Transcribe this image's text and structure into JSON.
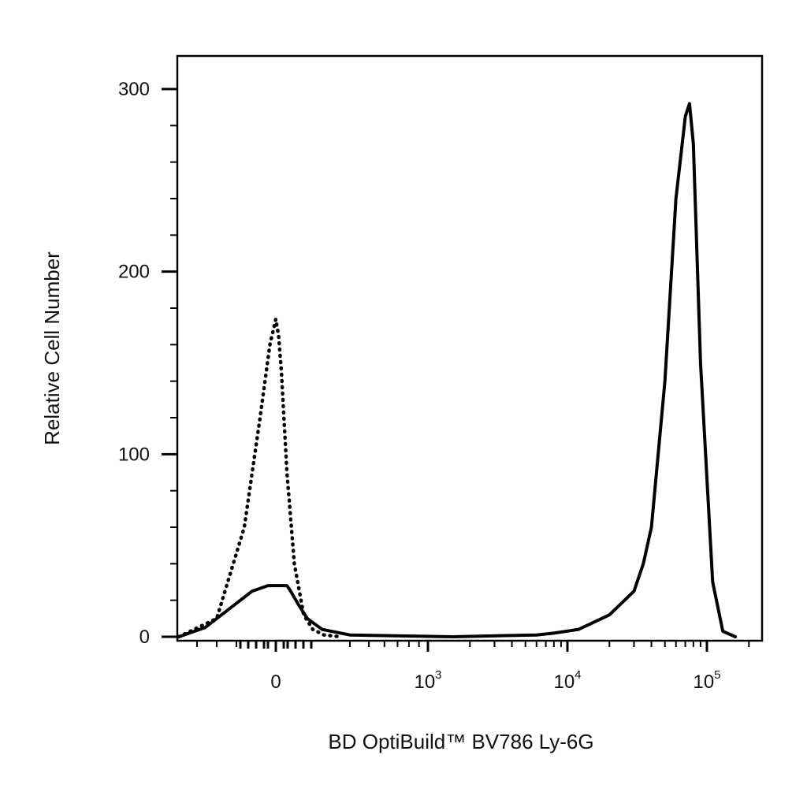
{
  "chart_data": {
    "type": "line",
    "xlabel": "BD OptiBuild™ BV786 Ly-6G",
    "ylabel": "Relative Cell Number",
    "xscale": "biexponential (linear near 0, log above)",
    "xlim": [
      -300,
      200000
    ],
    "ylim": [
      0,
      300
    ],
    "yticks": [
      {
        "value": 0,
        "label": "0"
      },
      {
        "value": 100,
        "label": "100"
      },
      {
        "value": 200,
        "label": "200"
      },
      {
        "value": 300,
        "label": "300"
      }
    ],
    "xticks": [
      {
        "value": 0,
        "base": "0",
        "exp": ""
      },
      {
        "value": 1000,
        "base": "10",
        "exp": "3"
      },
      {
        "value": 10000,
        "base": "10",
        "exp": "4"
      },
      {
        "value": 100000,
        "base": "10",
        "exp": "5"
      }
    ],
    "grid": false,
    "legend": "none",
    "series": [
      {
        "style": "solid",
        "color": "#000000",
        "x": [
          -250,
          -180,
          -120,
          -60,
          -20,
          0,
          30,
          60,
          80,
          120,
          170,
          250,
          400,
          1500,
          6000,
          8000,
          12000,
          20000,
          30000,
          35000,
          40000,
          50000,
          60000,
          70000,
          75000,
          80000,
          90000,
          110000,
          130000,
          160000
        ],
        "y": [
          0,
          5,
          15,
          25,
          28,
          28,
          28,
          28,
          25,
          18,
          10,
          4,
          1,
          0,
          1,
          2,
          4,
          12,
          25,
          40,
          60,
          140,
          240,
          285,
          292,
          270,
          150,
          30,
          3,
          0
        ]
      },
      {
        "style": "dotted",
        "color": "#000000",
        "x": [
          -250,
          -150,
          -80,
          -40,
          -15,
          0,
          15,
          30,
          60,
          100,
          150,
          200,
          260,
          350
        ],
        "y": [
          0,
          10,
          60,
          120,
          160,
          174,
          165,
          145,
          90,
          40,
          12,
          4,
          1,
          0
        ]
      }
    ]
  }
}
